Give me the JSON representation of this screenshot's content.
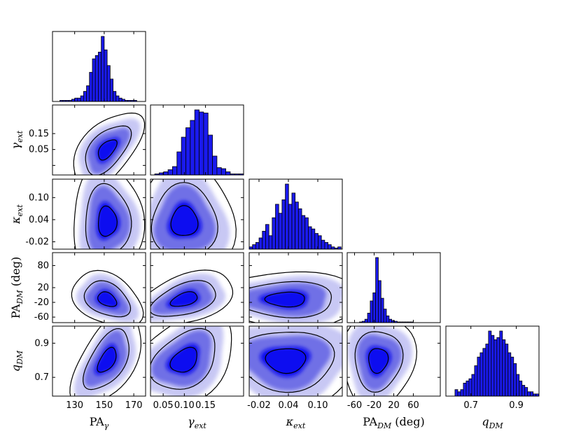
{
  "chart_data": {
    "type": "corner",
    "colors": {
      "density_1sigma": "#1010f0",
      "density_2sigma": "#6f6fe6",
      "density_3sigma": "#c8c8f4",
      "bar": "#1a1aee",
      "contour": "#000000"
    },
    "parameters": [
      {
        "id": "pa_gamma",
        "xlabel": "PA",
        "xsub": "γ",
        "ylabel": "",
        "range": [
          115,
          178
        ],
        "xticks": [
          "130",
          "150",
          "170"
        ],
        "yticks": []
      },
      {
        "id": "gamma_ext",
        "xlabel": "γ",
        "xsub": "ext",
        "ylabel": "γ",
        "ysub": "ext",
        "range": [
          0.02,
          0.24
        ],
        "xticks": [
          "0.05",
          "0.10",
          "0.15"
        ],
        "yticks": [
          "0.15",
          "0.05"
        ]
      },
      {
        "id": "kappa_ext",
        "xlabel": "κ",
        "xsub": "ext",
        "ylabel": "κ",
        "ysub": "ext",
        "range": [
          -0.04,
          0.15
        ],
        "xticks": [
          "-0.02",
          "0.04",
          "0.10"
        ],
        "yticks": [
          "0.10",
          "0.04",
          "-0.02"
        ]
      },
      {
        "id": "pa_dm",
        "xlabel": "PA",
        "xsub": "DM",
        "xunit": " (deg)",
        "ylabel": "PA",
        "ysub": "DM",
        "yunit": " (deg)",
        "range": [
          -75,
          115
        ],
        "xticks": [
          "-60",
          "-20",
          "20",
          "60"
        ],
        "yticks": [
          "80",
          "20",
          "-20",
          "-60"
        ]
      },
      {
        "id": "q_dm",
        "xlabel": "q",
        "xsub": "DM",
        "ylabel": "q",
        "ysub": "DM",
        "range": [
          0.59,
          1.0
        ],
        "xticks": [
          "0.7",
          "0.9"
        ],
        "yticks": [
          "0.9",
          "0.7"
        ]
      }
    ],
    "tick_values": {
      "pa_gamma": [
        130,
        150,
        170
      ],
      "gamma_ext": [
        0.05,
        0.1,
        0.15
      ],
      "kappa_ext": [
        -0.02,
        0.04,
        0.1
      ],
      "pa_dm": [
        -60,
        -20,
        20,
        60
      ],
      "pa_dm_y": [
        80,
        20,
        -20,
        -60
      ],
      "q_dm": [
        0.7,
        0.9
      ]
    },
    "histograms": {
      "pa_gamma": {
        "bin_start": 120,
        "bin_width": 2,
        "counts": [
          1,
          1,
          1,
          1,
          2,
          3,
          3,
          5,
          9,
          14,
          26,
          38,
          41,
          44,
          58,
          46,
          32,
          20,
          9,
          5,
          3,
          2,
          1,
          1,
          1,
          1
        ]
      },
      "gamma_ext": {
        "bin_start": 0.03,
        "bin_width": 0.0105,
        "counts": [
          1,
          2,
          3,
          5,
          8,
          22,
          36,
          45,
          52,
          62,
          60,
          59,
          38,
          18,
          7,
          6,
          3,
          1,
          1,
          1
        ]
      },
      "kappa_ext": {
        "bin_start": -0.04,
        "bin_width": 0.0067,
        "counts": [
          2,
          4,
          6,
          10,
          16,
          22,
          12,
          28,
          40,
          32,
          44,
          58,
          40,
          50,
          42,
          36,
          30,
          28,
          20,
          18,
          14,
          12,
          8,
          6,
          4,
          2,
          1,
          2
        ]
      },
      "pa_dm": {
        "bin_start": -50,
        "bin_width": 5.5,
        "counts": [
          1,
          2,
          5,
          14,
          32,
          44,
          96,
          62,
          36,
          20,
          10,
          5,
          3,
          2,
          1,
          1,
          1,
          1,
          1,
          1
        ]
      },
      "q_dm": {
        "bin_start": 0.63,
        "bin_width": 0.0123,
        "counts": [
          3,
          2,
          3,
          6,
          7,
          8,
          10,
          14,
          18,
          20,
          22,
          24,
          30,
          28,
          26,
          27,
          30,
          26,
          24,
          20,
          18,
          15,
          10,
          7,
          5,
          4,
          2,
          2,
          1,
          1
        ]
      }
    }
  }
}
